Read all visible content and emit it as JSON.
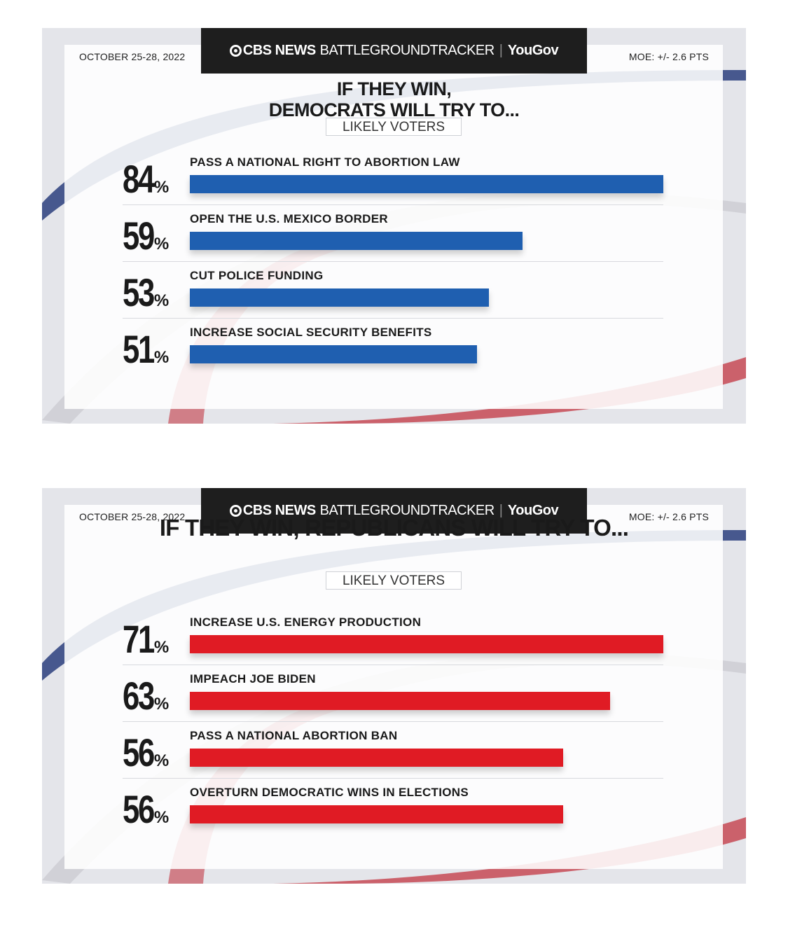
{
  "colors": {
    "blue": "#1f5fb0",
    "red": "#e01b24",
    "dark": "#1e1e1e"
  },
  "chart_data": [
    {
      "type": "bar",
      "orientation": "horizontal",
      "header": {
        "date": "OCTOBER 25-28, 2022",
        "brand_main": "CBS NEWS",
        "brand_sub": "BATTLEGROUNDTRACKER",
        "brand_partner": "YouGov",
        "moe": "MOE: +/- 2.6 PTS"
      },
      "title_lines": [
        "IF THEY WIN,",
        "DEMOCRATS WILL TRY TO..."
      ],
      "subtitle": "LIKELY VOTERS",
      "categories": [
        "PASS A NATIONAL RIGHT TO ABORTION LAW",
        "OPEN THE U.S. MEXICO BORDER",
        "CUT POLICE FUNDING",
        "INCREASE SOCIAL SECURITY BENEFITS"
      ],
      "values": [
        84,
        59,
        53,
        51
      ],
      "value_labels": [
        "84",
        "59",
        "53",
        "51"
      ],
      "unit": "%",
      "bar_color": "blue",
      "ylim": [
        0,
        84
      ]
    },
    {
      "type": "bar",
      "orientation": "horizontal",
      "header": {
        "date": "OCTOBER 25-28, 2022",
        "brand_main": "CBS NEWS",
        "brand_sub": "BATTLEGROUNDTRACKER",
        "brand_partner": "YouGov",
        "moe": "MOE: +/- 2.6 PTS"
      },
      "title_lines": [
        "IF THEY WIN, REPUBLICANS WILL TRY TO..."
      ],
      "subtitle": "LIKELY VOTERS",
      "categories": [
        "INCREASE U.S. ENERGY PRODUCTION",
        "IMPEACH JOE BIDEN",
        "PASS A NATIONAL ABORTION BAN",
        "OVERTURN DEMOCRATIC WINS IN ELECTIONS"
      ],
      "values": [
        71,
        63,
        56,
        56
      ],
      "value_labels": [
        "71",
        "63",
        "56",
        "56"
      ],
      "unit": "%",
      "bar_color": "red",
      "ylim": [
        0,
        71
      ]
    }
  ]
}
